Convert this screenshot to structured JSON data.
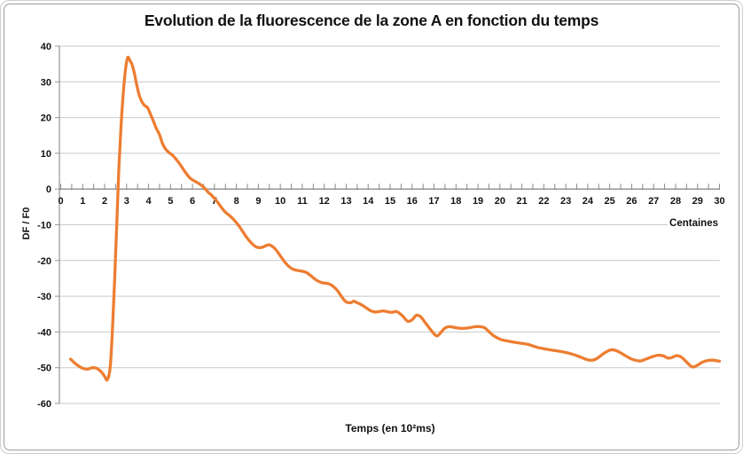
{
  "chart_data": {
    "type": "line",
    "title": "Evolution de la fluorescence de la zone A en fonction du temps",
    "xlabel": "Temps (en 10²ms)",
    "ylabel": "DF / F0",
    "x_unit_label": "Centaines",
    "xlim": [
      0,
      30
    ],
    "ylim": [
      -60,
      40
    ],
    "x_ticks": [
      0,
      1,
      2,
      3,
      4,
      5,
      6,
      7,
      8,
      9,
      10,
      11,
      12,
      13,
      14,
      15,
      16,
      17,
      18,
      19,
      20,
      21,
      22,
      23,
      24,
      25,
      26,
      27,
      28,
      29,
      30
    ],
    "x_minor_tick_step": 0.5,
    "y_ticks": [
      40,
      30,
      20,
      10,
      0,
      -10,
      -20,
      -30,
      -40,
      -50,
      -60
    ],
    "grid": true,
    "legend": false,
    "colors": {
      "line": "#ED7D31",
      "gridline": "#c9c9c9",
      "axis": "#949494",
      "zero_line": "#8c8c8c",
      "text": "#111111"
    },
    "series": [
      {
        "name": "DF / F0",
        "color": "#ED7D31",
        "points": [
          [
            0.45,
            -47.6
          ],
          [
            0.7,
            -49.0
          ],
          [
            0.95,
            -50.0
          ],
          [
            1.2,
            -50.4
          ],
          [
            1.45,
            -50.0
          ],
          [
            1.65,
            -50.2
          ],
          [
            1.85,
            -51.2
          ],
          [
            2.0,
            -52.4
          ],
          [
            2.12,
            -53.4
          ],
          [
            2.25,
            -50.0
          ],
          [
            2.35,
            -40.0
          ],
          [
            2.45,
            -26.0
          ],
          [
            2.55,
            -10.0
          ],
          [
            2.65,
            6.0
          ],
          [
            2.75,
            18.0
          ],
          [
            2.85,
            27.0
          ],
          [
            2.95,
            33.5
          ],
          [
            3.05,
            36.8
          ],
          [
            3.15,
            36.0
          ],
          [
            3.25,
            34.8
          ],
          [
            3.35,
            32.5
          ],
          [
            3.45,
            29.5
          ],
          [
            3.55,
            26.8
          ],
          [
            3.65,
            25.0
          ],
          [
            3.8,
            23.5
          ],
          [
            3.95,
            22.8
          ],
          [
            4.05,
            21.5
          ],
          [
            4.2,
            19.3
          ],
          [
            4.35,
            17.0
          ],
          [
            4.5,
            15.2
          ],
          [
            4.65,
            12.5
          ],
          [
            4.8,
            11.0
          ],
          [
            4.95,
            10.1
          ],
          [
            5.1,
            9.4
          ],
          [
            5.3,
            8.0
          ],
          [
            5.5,
            6.3
          ],
          [
            5.7,
            4.5
          ],
          [
            5.9,
            3.0
          ],
          [
            6.1,
            2.2
          ],
          [
            6.3,
            1.5
          ],
          [
            6.5,
            0.6
          ],
          [
            6.7,
            -0.8
          ],
          [
            6.9,
            -1.9
          ],
          [
            7.1,
            -3.3
          ],
          [
            7.3,
            -5.0
          ],
          [
            7.5,
            -6.5
          ],
          [
            7.7,
            -7.5
          ],
          [
            7.9,
            -8.7
          ],
          [
            8.1,
            -10.2
          ],
          [
            8.3,
            -12.0
          ],
          [
            8.5,
            -13.8
          ],
          [
            8.7,
            -15.2
          ],
          [
            8.9,
            -16.2
          ],
          [
            9.1,
            -16.4
          ],
          [
            9.3,
            -16.0
          ],
          [
            9.45,
            -15.6
          ],
          [
            9.6,
            -15.9
          ],
          [
            9.8,
            -17.0
          ],
          [
            10.0,
            -18.7
          ],
          [
            10.2,
            -20.4
          ],
          [
            10.4,
            -21.7
          ],
          [
            10.6,
            -22.5
          ],
          [
            10.8,
            -22.8
          ],
          [
            11.0,
            -23.0
          ],
          [
            11.2,
            -23.4
          ],
          [
            11.4,
            -24.3
          ],
          [
            11.6,
            -25.3
          ],
          [
            11.8,
            -26.0
          ],
          [
            12.0,
            -26.3
          ],
          [
            12.2,
            -26.5
          ],
          [
            12.4,
            -27.2
          ],
          [
            12.6,
            -28.4
          ],
          [
            12.8,
            -30.2
          ],
          [
            13.0,
            -31.6
          ],
          [
            13.2,
            -31.8
          ],
          [
            13.35,
            -31.4
          ],
          [
            13.5,
            -31.8
          ],
          [
            13.7,
            -32.4
          ],
          [
            13.9,
            -33.2
          ],
          [
            14.1,
            -34.0
          ],
          [
            14.3,
            -34.4
          ],
          [
            14.5,
            -34.3
          ],
          [
            14.7,
            -34.1
          ],
          [
            14.9,
            -34.4
          ],
          [
            15.1,
            -34.5
          ],
          [
            15.3,
            -34.3
          ],
          [
            15.55,
            -35.4
          ],
          [
            15.8,
            -37.0
          ],
          [
            16.0,
            -36.6
          ],
          [
            16.2,
            -35.3
          ],
          [
            16.4,
            -35.8
          ],
          [
            16.6,
            -37.4
          ],
          [
            16.8,
            -39.0
          ],
          [
            17.0,
            -40.5
          ],
          [
            17.15,
            -41.1
          ],
          [
            17.3,
            -40.2
          ],
          [
            17.5,
            -38.9
          ],
          [
            17.7,
            -38.5
          ],
          [
            17.9,
            -38.7
          ],
          [
            18.1,
            -38.9
          ],
          [
            18.3,
            -39.0
          ],
          [
            18.5,
            -38.9
          ],
          [
            18.7,
            -38.7
          ],
          [
            18.9,
            -38.5
          ],
          [
            19.1,
            -38.5
          ],
          [
            19.3,
            -38.8
          ],
          [
            19.5,
            -39.9
          ],
          [
            19.7,
            -41.0
          ],
          [
            19.9,
            -41.7
          ],
          [
            20.1,
            -42.2
          ],
          [
            20.35,
            -42.5
          ],
          [
            20.6,
            -42.8
          ],
          [
            20.9,
            -43.1
          ],
          [
            21.3,
            -43.5
          ],
          [
            21.7,
            -44.3
          ],
          [
            22.1,
            -44.8
          ],
          [
            22.5,
            -45.2
          ],
          [
            22.9,
            -45.6
          ],
          [
            23.3,
            -46.2
          ],
          [
            23.7,
            -47.1
          ],
          [
            23.95,
            -47.7
          ],
          [
            24.2,
            -47.9
          ],
          [
            24.45,
            -47.3
          ],
          [
            24.75,
            -45.9
          ],
          [
            25.05,
            -45.0
          ],
          [
            25.3,
            -45.2
          ],
          [
            25.6,
            -46.2
          ],
          [
            25.9,
            -47.3
          ],
          [
            26.15,
            -47.9
          ],
          [
            26.4,
            -48.1
          ],
          [
            26.65,
            -47.6
          ],
          [
            26.95,
            -46.9
          ],
          [
            27.2,
            -46.5
          ],
          [
            27.45,
            -46.7
          ],
          [
            27.65,
            -47.3
          ],
          [
            27.85,
            -47.1
          ],
          [
            28.05,
            -46.6
          ],
          [
            28.25,
            -47.0
          ],
          [
            28.45,
            -48.1
          ],
          [
            28.65,
            -49.3
          ],
          [
            28.8,
            -49.8
          ],
          [
            29.0,
            -49.3
          ],
          [
            29.2,
            -48.5
          ],
          [
            29.45,
            -48.0
          ],
          [
            29.7,
            -47.9
          ],
          [
            30.0,
            -48.2
          ]
        ]
      }
    ]
  }
}
